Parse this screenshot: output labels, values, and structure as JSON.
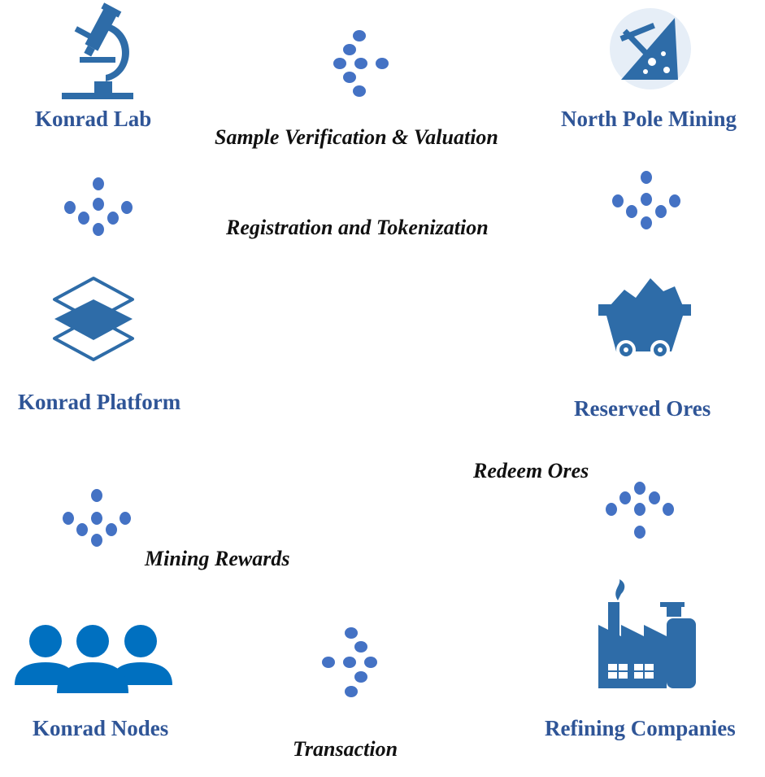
{
  "colors": {
    "node_label": "#2f5597",
    "edge_label": "#111111",
    "icon": "#2e6ca8",
    "people_icon": "#0070c0",
    "connector_dots": "#4472c4"
  },
  "nodes": {
    "konrad_lab": {
      "label": "Konrad Lab",
      "icon": "microscope-icon"
    },
    "north_pole_mining": {
      "label": "North Pole Mining",
      "icon": "mining-pickaxe-icon"
    },
    "konrad_platform": {
      "label": "Konrad Platform",
      "icon": "layers-icon"
    },
    "reserved_ores": {
      "label": "Reserved Ores",
      "icon": "mine-cart-icon"
    },
    "konrad_nodes": {
      "label": "Konrad Nodes",
      "icon": "people-group-icon"
    },
    "refining_companies": {
      "label": "Refining Companies",
      "icon": "factory-icon"
    }
  },
  "edges": {
    "sample_verification": "Sample Verification & Valuation",
    "registration": "Registration and Tokenization",
    "redeem_ores": "Redeem Ores",
    "mining_rewards": "Mining Rewards",
    "transaction": "Transaction"
  }
}
